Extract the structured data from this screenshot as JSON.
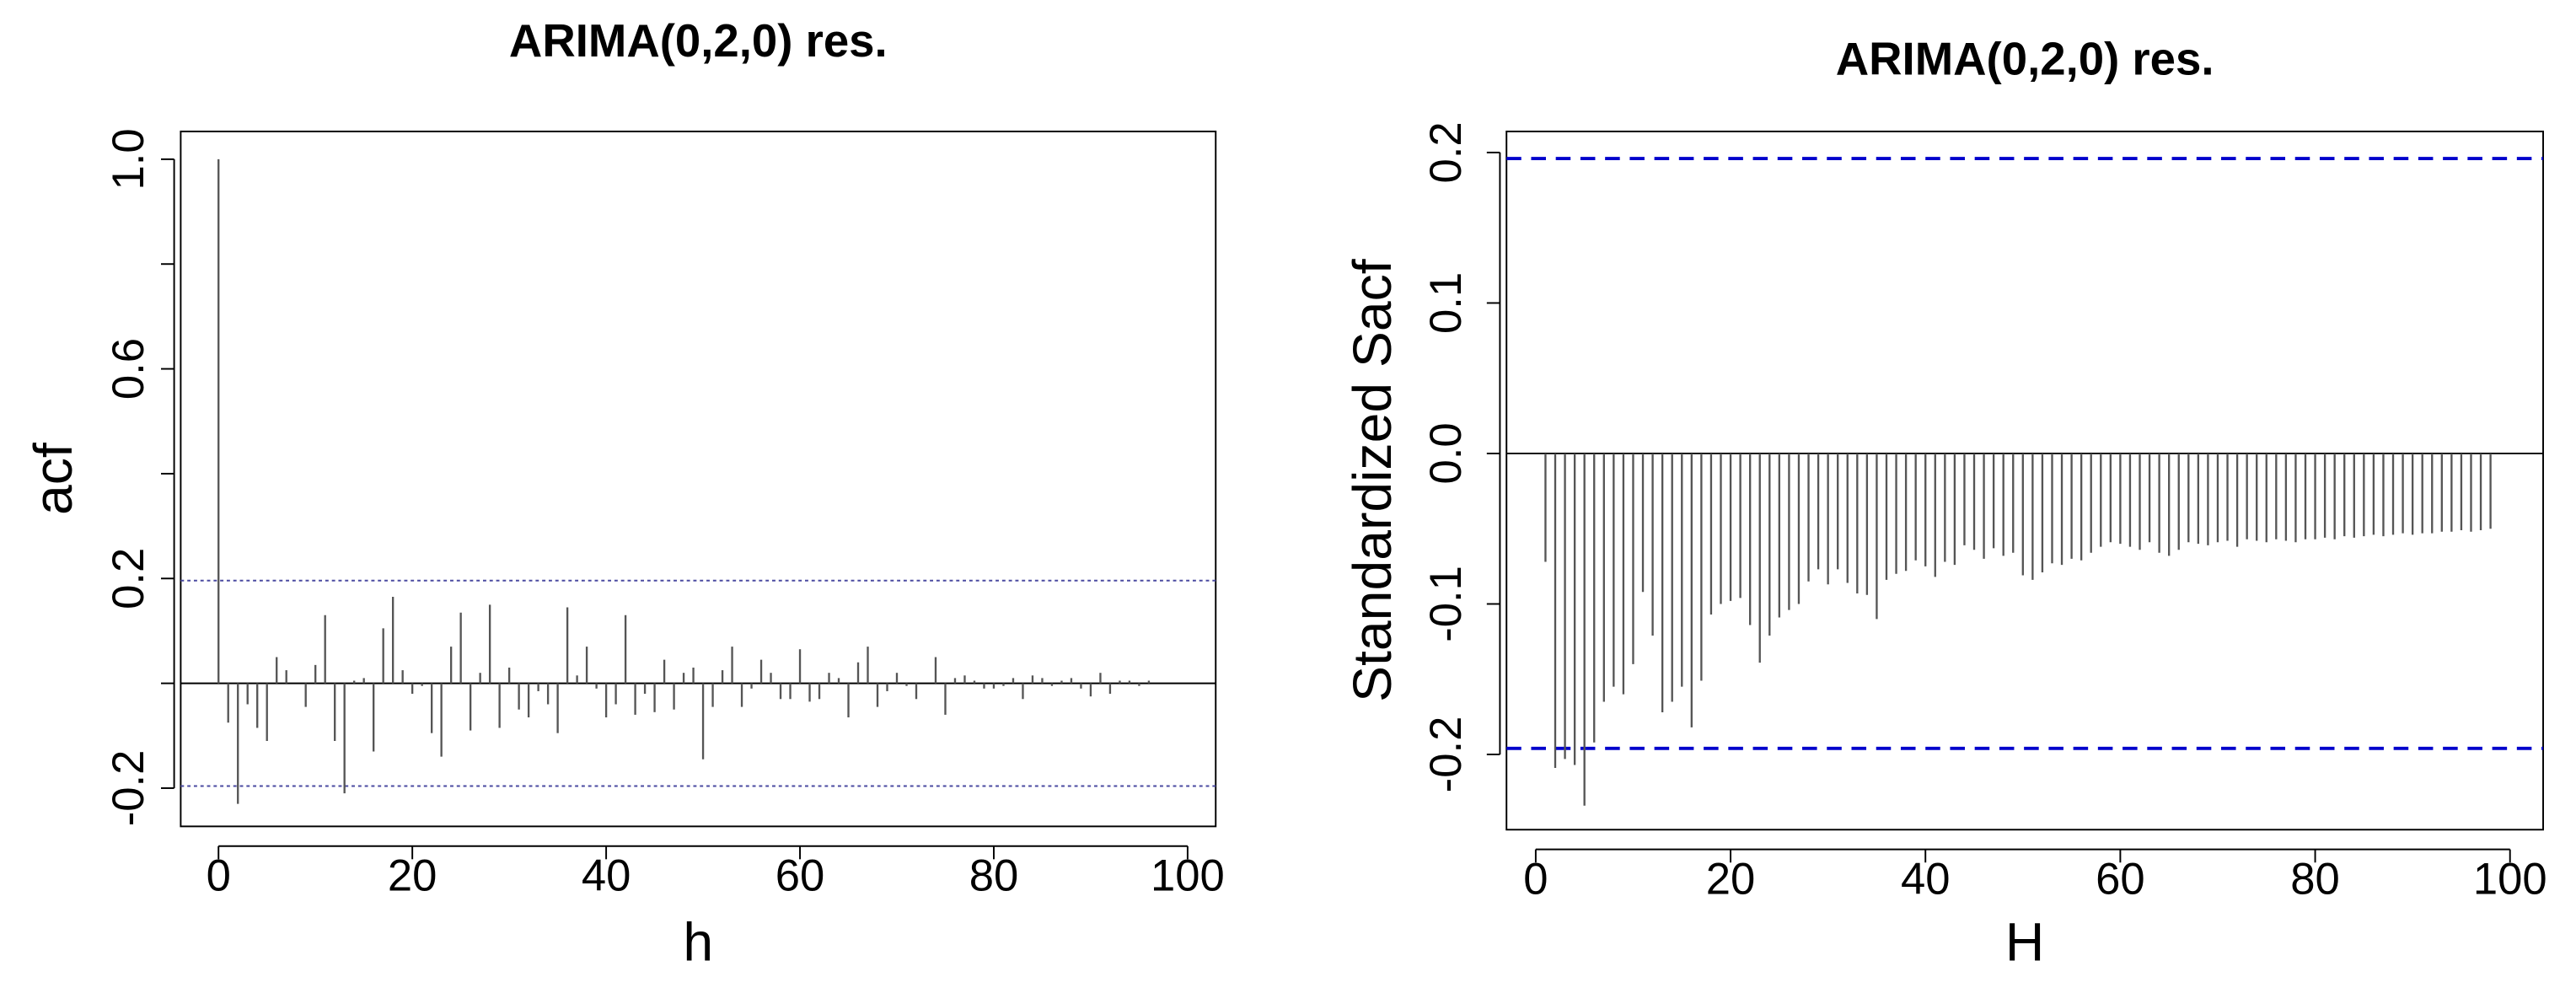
{
  "chart_data": [
    {
      "type": "stem",
      "title": "ARIMA(0,2,0) res.",
      "xlabel": "h",
      "ylabel": "acf",
      "color": "#555555",
      "x": [
        0,
        1,
        2,
        3,
        4,
        5,
        6,
        7,
        8,
        9,
        10,
        11,
        12,
        13,
        14,
        15,
        16,
        17,
        18,
        19,
        20,
        21,
        22,
        23,
        24,
        25,
        26,
        27,
        28,
        29,
        30,
        31,
        32,
        33,
        34,
        35,
        36,
        37,
        38,
        39,
        40,
        41,
        42,
        43,
        44,
        45,
        46,
        47,
        48,
        49,
        50,
        51,
        52,
        53,
        54,
        55,
        56,
        57,
        58,
        59,
        60,
        61,
        62,
        63,
        64,
        65,
        66,
        67,
        68,
        69,
        70,
        71,
        72,
        73,
        74,
        75,
        76,
        77,
        78,
        79,
        80,
        81,
        82,
        83,
        84,
        85,
        86,
        87,
        88,
        89,
        90,
        91,
        92,
        93,
        94,
        95,
        96,
        97
      ],
      "values": [
        1.0,
        -0.075,
        -0.23,
        -0.04,
        -0.085,
        -0.11,
        0.05,
        0.025,
        0,
        -0.045,
        0.035,
        0.13,
        -0.11,
        -0.21,
        0.005,
        0.01,
        -0.13,
        0.105,
        0.165,
        0.025,
        -0.02,
        -0.005,
        -0.095,
        -0.14,
        0.07,
        0.135,
        -0.09,
        0.02,
        0.15,
        -0.085,
        0.03,
        -0.05,
        -0.065,
        -0.015,
        -0.04,
        -0.095,
        0.145,
        0.015,
        0.07,
        -0.01,
        -0.065,
        -0.04,
        0.13,
        -0.06,
        -0.02,
        -0.055,
        0.045,
        -0.05,
        0.02,
        0.03,
        -0.145,
        -0.045,
        0.025,
        0.07,
        -0.045,
        -0.01,
        0.045,
        0.02,
        -0.03,
        -0.03,
        0.065,
        -0.035,
        -0.03,
        0.02,
        0.01,
        -0.065,
        0.04,
        0.07,
        -0.045,
        -0.015,
        0.02,
        -0.005,
        -0.03,
        0,
        0.05,
        -0.06,
        0.01,
        0.015,
        0.005,
        -0.01,
        -0.01,
        -0.005,
        0.01,
        -0.03,
        0.015,
        0.01,
        -0.005,
        0.005,
        0.01,
        -0.01,
        -0.025,
        0.02,
        -0.02,
        0.005,
        0.005,
        -0.005,
        0.005,
        0
      ],
      "xlim": [
        -3.9,
        102.9
      ],
      "ylim": [
        -0.273,
        1.053
      ],
      "xticks": [
        0,
        20,
        40,
        60,
        80,
        100
      ],
      "yticks": [
        -0.2,
        0.2,
        0.6,
        {
          "value": 1,
          "label": "1.0"
        }
      ],
      "yticks_unlabeled": [
        0,
        0.4,
        0.8
      ],
      "zero_line": true,
      "hlines": [
        0.196,
        -0.196
      ],
      "hline_color": "#4a4aa0",
      "hline_style": "dotted"
    },
    {
      "type": "stem",
      "title": "ARIMA(0,2,0) res.",
      "xlabel": "H",
      "ylabel": "Standardized Sacf",
      "color": "#555555",
      "x": [
        1,
        2,
        3,
        4,
        5,
        6,
        7,
        8,
        9,
        10,
        11,
        12,
        13,
        14,
        15,
        16,
        17,
        18,
        19,
        20,
        21,
        22,
        23,
        24,
        25,
        26,
        27,
        28,
        29,
        30,
        31,
        32,
        33,
        34,
        35,
        36,
        37,
        38,
        39,
        40,
        41,
        42,
        43,
        44,
        45,
        46,
        47,
        48,
        49,
        50,
        51,
        52,
        53,
        54,
        55,
        56,
        57,
        58,
        59,
        60,
        61,
        62,
        63,
        64,
        65,
        66,
        67,
        68,
        69,
        70,
        71,
        72,
        73,
        74,
        75,
        76,
        77,
        78,
        79,
        80,
        81,
        82,
        83,
        84,
        85,
        86,
        87,
        88,
        89,
        90,
        91,
        92,
        93,
        94,
        95,
        96,
        97,
        98
      ],
      "values": [
        -0.072,
        -0.209,
        -0.203,
        -0.207,
        -0.234,
        -0.192,
        -0.165,
        -0.155,
        -0.16,
        -0.14,
        -0.092,
        -0.121,
        -0.172,
        -0.165,
        -0.155,
        -0.182,
        -0.151,
        -0.107,
        -0.1,
        -0.098,
        -0.096,
        -0.114,
        -0.139,
        -0.121,
        -0.109,
        -0.104,
        -0.1,
        -0.085,
        -0.077,
        -0.087,
        -0.077,
        -0.086,
        -0.093,
        -0.094,
        -0.11,
        -0.084,
        -0.08,
        -0.078,
        -0.071,
        -0.075,
        -0.082,
        -0.072,
        -0.074,
        -0.061,
        -0.064,
        -0.07,
        -0.063,
        -0.068,
        -0.066,
        -0.081,
        -0.084,
        -0.079,
        -0.073,
        -0.074,
        -0.07,
        -0.071,
        -0.066,
        -0.062,
        -0.059,
        -0.06,
        -0.062,
        -0.064,
        -0.059,
        -0.066,
        -0.068,
        -0.064,
        -0.059,
        -0.06,
        -0.061,
        -0.059,
        -0.058,
        -0.062,
        -0.057,
        -0.058,
        -0.059,
        -0.057,
        -0.058,
        -0.059,
        -0.057,
        -0.057,
        -0.056,
        -0.057,
        -0.055,
        -0.056,
        -0.055,
        -0.054,
        -0.055,
        -0.054,
        -0.053,
        -0.054,
        -0.053,
        -0.053,
        -0.052,
        -0.052,
        -0.051,
        -0.052,
        -0.051,
        -0.05
      ],
      "xlim": [
        -3.0,
        103.4
      ],
      "ylim": [
        -0.25,
        0.214
      ],
      "xticks": [
        0,
        20,
        40,
        60,
        80,
        100
      ],
      "yticks": [
        -0.2,
        -0.1,
        {
          "value": 0,
          "label": "0.0"
        },
        0.1,
        0.2
      ],
      "zero_line": true,
      "hlines": [
        0.196,
        -0.196
      ],
      "hline_color": "#0000cc",
      "hline_style": "dashed"
    }
  ]
}
